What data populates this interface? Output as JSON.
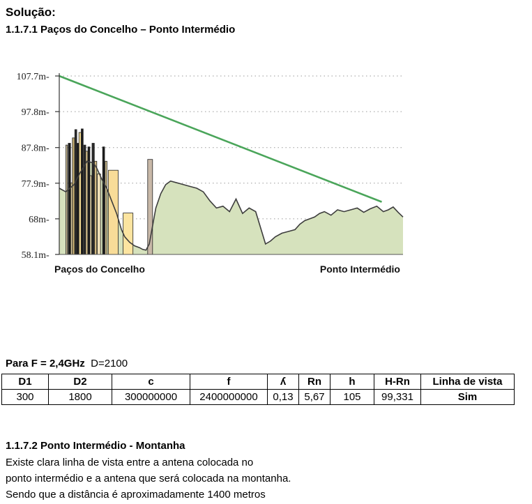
{
  "heading": "Solução:",
  "section1_title": "1.1.7.1 Paços do Concelho – Ponto Intermédio",
  "chart_data": {
    "type": "area",
    "y_tick_labels": [
      "107.7m",
      "97.8m",
      "87.8m",
      "77.9m",
      "68m",
      "58.1m"
    ],
    "y_ticks": [
      107.7,
      97.8,
      87.8,
      77.9,
      68.0,
      58.1
    ],
    "ylim": [
      58.1,
      107.7
    ],
    "xlim": [
      0,
      2100
    ],
    "start_label": "Paços do Concelho",
    "end_label": "Ponto Intermédio",
    "grid": "dotted-horizontal",
    "terrain": {
      "x": [
        0,
        40,
        90,
        130,
        170,
        210,
        230,
        260,
        290,
        320,
        350,
        380,
        400,
        430,
        460,
        490,
        510,
        530,
        550,
        570,
        590,
        620,
        650,
        680,
        720,
        760,
        800,
        840,
        880,
        920,
        960,
        1000,
        1040,
        1080,
        1120,
        1160,
        1200,
        1240,
        1260,
        1290,
        1320,
        1360,
        1400,
        1440,
        1470,
        1500,
        1530,
        1560,
        1590,
        1620,
        1660,
        1700,
        1740,
        1780,
        1820,
        1860,
        1900,
        1940,
        1980,
        2010,
        2040,
        2070,
        2100
      ],
      "y": [
        76.5,
        75.5,
        77.5,
        81.0,
        84.0,
        83.5,
        82.0,
        79.0,
        76.5,
        73.0,
        69.5,
        65.0,
        63.0,
        61.5,
        60.5,
        60.0,
        59.5,
        59.3,
        61.0,
        66.0,
        71.0,
        75.0,
        77.5,
        78.5,
        78.0,
        77.5,
        77.0,
        76.5,
        75.5,
        73.0,
        71.0,
        71.5,
        70.0,
        73.5,
        69.5,
        71.0,
        70.0,
        64.0,
        61.0,
        61.8,
        63.0,
        64.0,
        64.5,
        65.0,
        66.5,
        67.5,
        68.0,
        68.5,
        69.5,
        70.0,
        69.0,
        70.5,
        70.0,
        70.5,
        71.0,
        69.8,
        70.8,
        71.5,
        70.0,
        70.5,
        71.3,
        69.8,
        68.5
      ]
    },
    "line_of_sight": {
      "x": [
        0,
        1970
      ],
      "y": [
        107.7,
        72.7
      ]
    },
    "buildings": [
      {
        "x": 40,
        "w": 10,
        "top": 88.5,
        "color": "#d8c8a0"
      },
      {
        "x": 55,
        "w": 14,
        "top": 89.0,
        "color": "#1a1a1a"
      },
      {
        "x": 70,
        "w": 10,
        "top": 78.0,
        "color": "#e8d8a8"
      },
      {
        "x": 80,
        "w": 14,
        "top": 90.5,
        "color": "#c0aa70"
      },
      {
        "x": 95,
        "w": 12,
        "top": 92.8,
        "color": "#2a2a2a"
      },
      {
        "x": 108,
        "w": 12,
        "top": 89.0,
        "color": "#1a1a1a"
      },
      {
        "x": 120,
        "w": 14,
        "top": 92.0,
        "color": "#f0d890"
      },
      {
        "x": 134,
        "w": 12,
        "top": 93.0,
        "color": "#1a1a1a"
      },
      {
        "x": 150,
        "w": 12,
        "top": 88.5,
        "color": "#2a2a2a"
      },
      {
        "x": 162,
        "w": 12,
        "top": 86.8,
        "color": "#e0c890"
      },
      {
        "x": 175,
        "w": 12,
        "top": 88.0,
        "color": "#1a1a1a"
      },
      {
        "x": 188,
        "w": 10,
        "top": 80.0,
        "color": "#f0e0b0"
      },
      {
        "x": 200,
        "w": 14,
        "top": 89.0,
        "color": "#2a2a2a"
      },
      {
        "x": 215,
        "w": 14,
        "top": 84.0,
        "color": "#d0b880"
      },
      {
        "x": 232,
        "w": 20,
        "top": 80.5,
        "color": "#f0e0b8"
      },
      {
        "x": 265,
        "w": 12,
        "top": 88.0,
        "color": "#1a1a1a"
      },
      {
        "x": 280,
        "w": 12,
        "top": 84.0,
        "color": "#d0c090"
      },
      {
        "x": 300,
        "w": 60,
        "top": 81.5,
        "color": "#f8dc98"
      },
      {
        "x": 390,
        "w": 60,
        "top": 69.6,
        "color": "#fce4a0"
      },
      {
        "x": 540,
        "w": 30,
        "top": 84.5,
        "color": "#c8b8a8"
      }
    ]
  },
  "para_label": "Para F = 2,4GHz",
  "para_extra": "D=2100",
  "table": {
    "headers": [
      "D1",
      "D2",
      "c",
      "f",
      "ʎ",
      "Rn",
      "h",
      "H-Rn",
      "Linha de vista"
    ],
    "row": [
      "300",
      "1800",
      "300000000",
      "2400000000",
      "0,13",
      "5,67",
      "105",
      "99,331",
      "Sim"
    ]
  },
  "section2_title": "1.1.7.2 Ponto Intermédio - Montanha",
  "body_lines": [
    "Existe clara linha de vista entre a antena colocada no",
    "ponto intermédio e a antena que será colocada na montanha.",
    "Sendo que a distância é aproximadamente 1400 metros"
  ],
  "colors": {
    "terrain_fill": "#d6e2bd",
    "terrain_stroke": "#3d3d3d",
    "line_of_sight": "#4aa55a"
  }
}
